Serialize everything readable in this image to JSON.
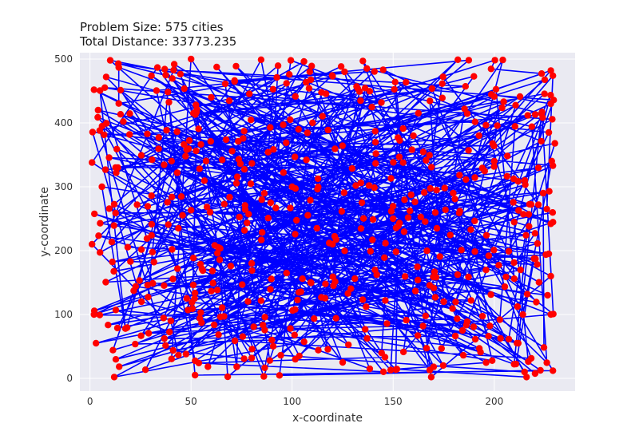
{
  "chart_data": {
    "type": "scatter",
    "title_lines": [
      "Problem Size: 575 cities",
      "Total Distance: 33773.235"
    ],
    "xlabel": "x-coordinate",
    "ylabel": "y-coordinate",
    "xlim": [
      -5,
      240
    ],
    "ylim": [
      -20,
      510
    ],
    "xticks": [
      0,
      50,
      100,
      150,
      200
    ],
    "yticks": [
      0,
      100,
      200,
      300,
      400,
      500
    ],
    "grid": true,
    "colors": {
      "background": "#eaeaf2",
      "grid": "#ffffff",
      "route": "#0000ff",
      "cities": "#ff0000"
    },
    "series": [
      {
        "type": "line",
        "role": "tour",
        "count": 575
      },
      {
        "type": "scatter",
        "role": "cities",
        "count": 575
      }
    ],
    "sample_points": [
      [
        10,
        498
      ],
      [
        50,
        500
      ],
      [
        135,
        497
      ],
      [
        182,
        499
      ],
      [
        228,
        482
      ],
      [
        229,
        474
      ],
      [
        228,
        430
      ],
      [
        227,
        385
      ],
      [
        230,
        368
      ],
      [
        229,
        333
      ],
      [
        226,
        265
      ],
      [
        228,
        242
      ],
      [
        227,
        195
      ],
      [
        228,
        160
      ],
      [
        228,
        100
      ],
      [
        229,
        12
      ],
      [
        215,
        10
      ],
      [
        170,
        18
      ],
      [
        125,
        25
      ],
      [
        86,
        3
      ],
      [
        52,
        5
      ],
      [
        12,
        2
      ],
      [
        3,
        55
      ],
      [
        2,
        100
      ],
      [
        1,
        210
      ],
      [
        1,
        338
      ],
      [
        2,
        452
      ],
      [
        8,
        472
      ],
      [
        4,
        420
      ],
      [
        6,
        395
      ],
      [
        100,
        300
      ],
      [
        150,
        250
      ],
      [
        80,
        180
      ],
      [
        175,
        120
      ],
      [
        60,
        440
      ],
      [
        200,
        340
      ],
      [
        120,
        210
      ],
      [
        40,
        90
      ],
      [
        160,
        380
      ],
      [
        90,
        60
      ]
    ]
  }
}
